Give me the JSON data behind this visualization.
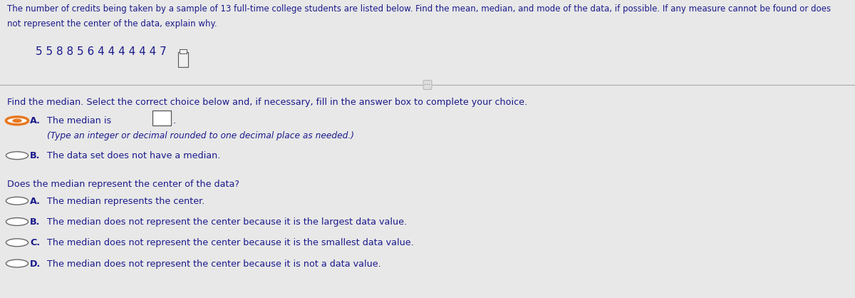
{
  "bg_top_strip": "#c0392b",
  "background_color": "#e8e8e8",
  "content_bg": "#e8e8e8",
  "top_text_line1": "The number of credits being taken by a sample of 13 full-time college students are listed below. Find the mean, median, and mode of the data, if possible. If any measure cannot be found or does",
  "top_text_line2": "not represent the center of the data, explain why.",
  "data_line": "5 5 8 8 5 6 4 4 4 4 4 4 7",
  "section2_text": "Find the median. Select the correct choice below and, if necessary, fill in the answer box to complete your choice.",
  "optionA_text1": "The median is",
  "optionA_text2": "(Type an integer or decimal rounded to one decimal place as needed.)",
  "optionB_text": "The data set does not have a median.",
  "section3_text": "Does the median represent the center of the data?",
  "choiceA_text": "The median represents the center.",
  "choiceB_text": "The median does not represent the center because it is the largest data value.",
  "choiceC_text": "The median does not represent the center because it is the smallest data value.",
  "choiceD_text": "The median does not represent the center because it is not a data value.",
  "text_color": "#1a1a8c",
  "label_color": "#1a1a8c",
  "font_size_top": 8.5,
  "font_size_data": 11.0,
  "font_size_body": 9.2,
  "font_size_sub": 8.8,
  "divider_color": "#aaaaaa",
  "radio_selected_outer": "#e87820",
  "radio_selected_inner": "#e87820",
  "radio_empty_edge": "#555555"
}
